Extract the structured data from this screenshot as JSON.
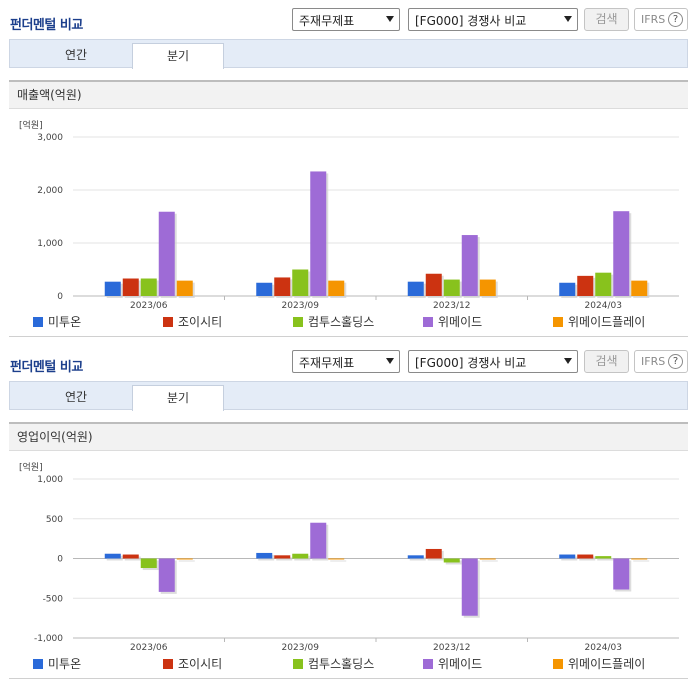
{
  "colors": {
    "series": [
      "#2a6ad9",
      "#cc3311",
      "#88c21d",
      "#9e6bd6",
      "#f59500"
    ]
  },
  "panels": [
    {
      "title": "펀더멘털 비교",
      "select_statement": "주재무제표",
      "select_compare": "[FG000] 경쟁사 비교",
      "search_label": "검색",
      "ifrs_label": "IFRS",
      "help_glyph": "?",
      "tabs": [
        "연간",
        "분기"
      ],
      "metric_label": "매출액(억원)",
      "chart_data": {
        "type": "bar",
        "title": "매출액(억원)",
        "unit_label": "[억원]",
        "categories": [
          "2023/06",
          "2023/09",
          "2023/12",
          "2024/03"
        ],
        "ylim": [
          0,
          3000
        ],
        "yticks": [
          0,
          1000,
          2000,
          3000
        ],
        "ytick_labels": [
          "0",
          "1,000",
          "2,000",
          "3,000"
        ],
        "grid": true,
        "legend_position": "bottom",
        "series": [
          {
            "name": "미투온",
            "values": [
              270,
              250,
              270,
              250
            ]
          },
          {
            "name": "조이시티",
            "values": [
              330,
              350,
              420,
              380
            ]
          },
          {
            "name": "컴투스홀딩스",
            "values": [
              330,
              500,
              310,
              440
            ]
          },
          {
            "name": "위메이드",
            "values": [
              1590,
              2350,
              1150,
              1600
            ]
          },
          {
            "name": "위메이드플레이",
            "values": [
              290,
              290,
              310,
              290
            ]
          }
        ]
      }
    },
    {
      "title": "펀더멘털 비교",
      "select_statement": "주재무제표",
      "select_compare": "[FG000] 경쟁사 비교",
      "search_label": "검색",
      "ifrs_label": "IFRS",
      "help_glyph": "?",
      "tabs": [
        "연간",
        "분기"
      ],
      "metric_label": "영업이익(억원)",
      "chart_data": {
        "type": "bar",
        "title": "영업이익(억원)",
        "unit_label": "[억원]",
        "categories": [
          "2023/06",
          "2023/09",
          "2023/12",
          "2024/03"
        ],
        "ylim": [
          -1000,
          1000
        ],
        "yticks": [
          -1000,
          -500,
          0,
          500,
          1000
        ],
        "ytick_labels": [
          "-1,000",
          "-500",
          "0",
          "500",
          "1,000"
        ],
        "grid": true,
        "legend_position": "bottom",
        "series": [
          {
            "name": "미투온",
            "values": [
              60,
              70,
              40,
              50
            ]
          },
          {
            "name": "조이시티",
            "values": [
              50,
              40,
              120,
              50
            ]
          },
          {
            "name": "컴투스홀딩스",
            "values": [
              -120,
              60,
              -50,
              30
            ]
          },
          {
            "name": "위메이드",
            "values": [
              -420,
              450,
              -720,
              -390
            ]
          },
          {
            "name": "위메이드플레이",
            "values": [
              -10,
              -10,
              -10,
              -10
            ]
          }
        ]
      }
    }
  ]
}
